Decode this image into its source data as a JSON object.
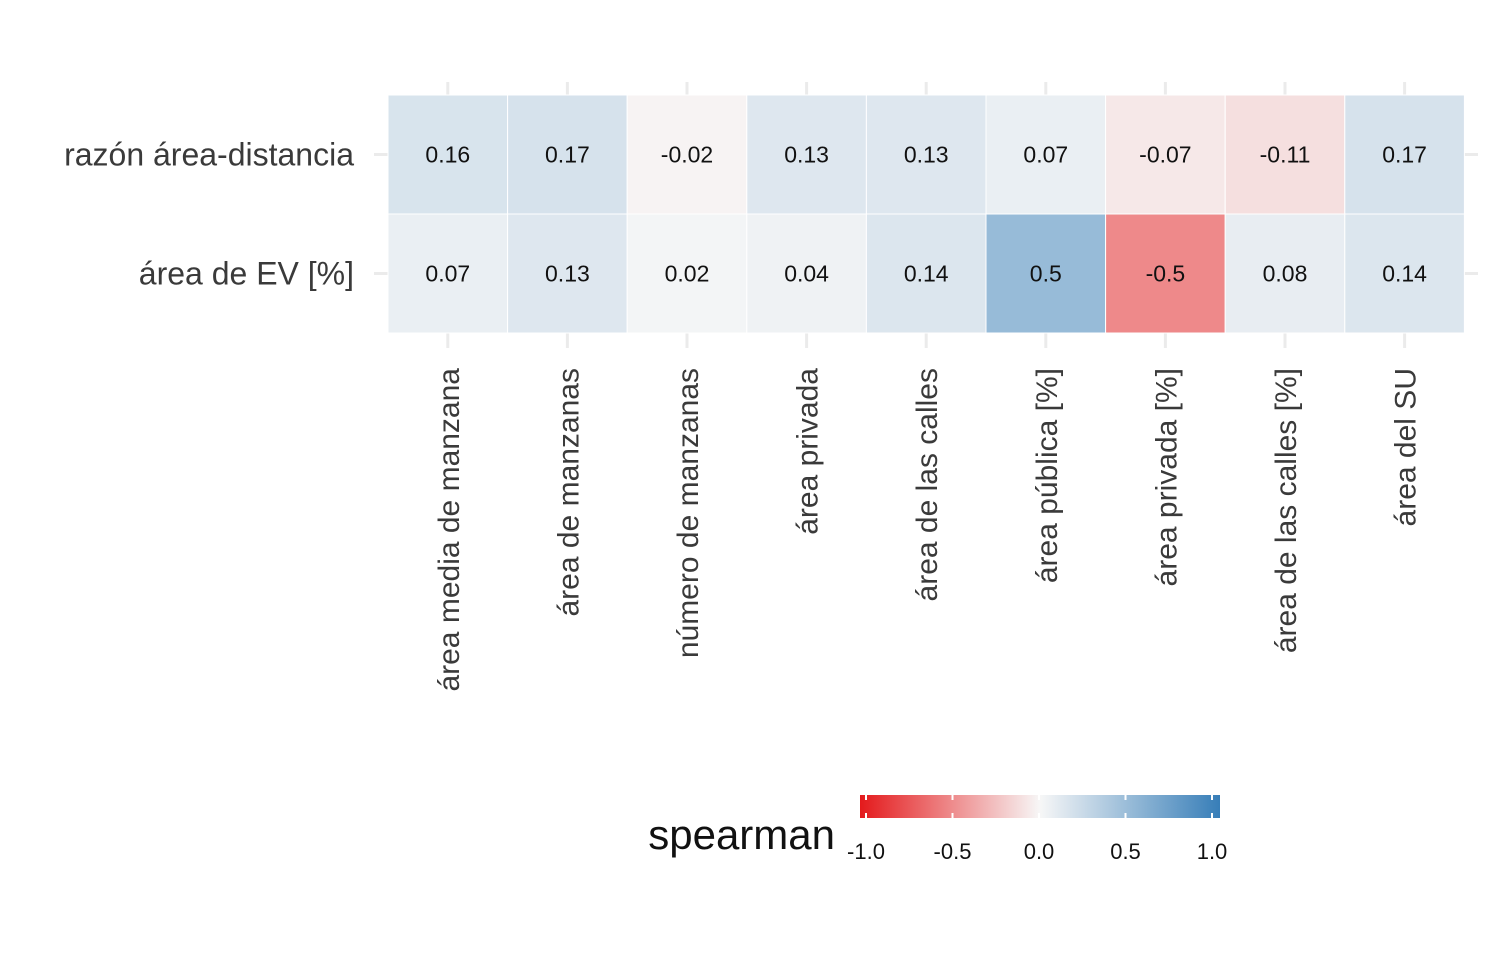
{
  "chart_data": {
    "type": "heatmap",
    "x_categories": [
      "área media de manzana",
      "área de manzanas",
      "número de manzanas",
      "área privada",
      "área de las calles",
      "área pública [%]",
      "área privada [%]",
      "área de las calles [%]",
      "área del SU"
    ],
    "y_categories": [
      "razón área-distancia",
      "área de EV [%]"
    ],
    "values": [
      [
        0.16,
        0.17,
        -0.02,
        0.13,
        0.13,
        0.07,
        -0.07,
        -0.11,
        0.17
      ],
      [
        0.07,
        0.13,
        0.02,
        0.04,
        0.14,
        0.5,
        -0.5,
        0.08,
        0.14
      ]
    ],
    "cell_labels": [
      [
        "0.16",
        "0.17",
        "-0.02",
        "0.13",
        "0.13",
        "0.07",
        "-0.07",
        "-0.11",
        "0.17"
      ],
      [
        "0.07",
        "0.13",
        "0.02",
        "0.04",
        "0.14",
        "0.5",
        "-0.5",
        "0.08",
        "0.14"
      ]
    ],
    "legend": {
      "title": "spearman",
      "ticks": [
        -1.0,
        -0.5,
        0.0,
        0.5,
        1.0
      ],
      "tick_labels": [
        "-1.0",
        "-0.5",
        "0.0",
        "0.5",
        "1.0"
      ],
      "range": [
        -1,
        1
      ],
      "position": "bottom"
    },
    "colors": {
      "negative": "#e41a1c",
      "neutral": "#f7f7f7",
      "positive": "#377eb8",
      "grid": "#ebebeb",
      "cell_border": "#ffffff"
    },
    "grid": true
  }
}
